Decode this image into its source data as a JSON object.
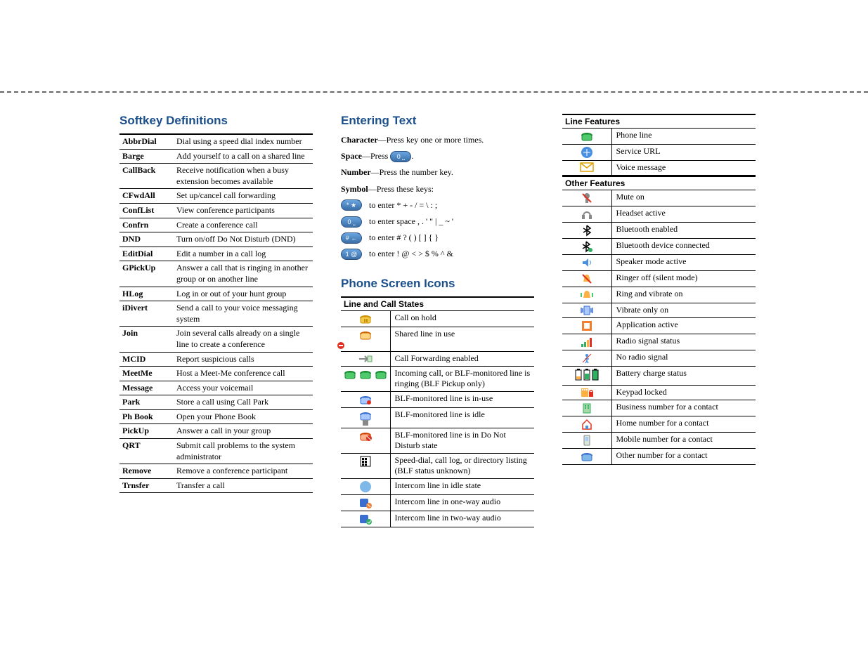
{
  "colors": {
    "heading": "#1b4f8b",
    "text": "#000000",
    "dash": "#666666",
    "keybtn_bg_top": "#6aa5e0",
    "keybtn_bg_bottom": "#3a6fa8"
  },
  "headings": {
    "softkey": "Softkey Definitions",
    "entering": "Entering Text",
    "icons": "Phone Screen Icons",
    "line_states": "Line and Call States",
    "line_features": "Line Features",
    "other_features": "Other Features"
  },
  "softkeys": [
    {
      "key": "AbbrDial",
      "desc": "Dial using a speed dial index number"
    },
    {
      "key": "Barge",
      "desc": "Add yourself to a call on a shared line"
    },
    {
      "key": "CallBack",
      "desc": "Receive notification when a busy extension becomes available"
    },
    {
      "key": "CFwdAll",
      "desc": "Set up/cancel call forwarding"
    },
    {
      "key": "ConfList",
      "desc": "View conference participants"
    },
    {
      "key": "Confrn",
      "desc": "Create a conference call"
    },
    {
      "key": "DND",
      "desc": "Turn on/off Do Not Disturb (DND)"
    },
    {
      "key": "EditDial",
      "desc": "Edit a number in a call log"
    },
    {
      "key": "GPickUp",
      "desc": "Answer a call that is ringing in another group or on another line"
    },
    {
      "key": "HLog",
      "desc": "Log in or out of your hunt group"
    },
    {
      "key": "iDivert",
      "desc": "Send a call to your voice messaging system"
    },
    {
      "key": "Join",
      "desc": "Join several calls already on a single line to create a conference"
    },
    {
      "key": "MCID",
      "desc": "Report suspicious calls"
    },
    {
      "key": "MeetMe",
      "desc": "Host a Meet-Me conference call"
    },
    {
      "key": "Message",
      "desc": "Access your voicemail"
    },
    {
      "key": "Park",
      "desc": "Store a call using Call Park"
    },
    {
      "key": "Ph Book",
      "desc": "Open your Phone Book"
    },
    {
      "key": "PickUp",
      "desc": "Answer a call in your group"
    },
    {
      "key": "QRT",
      "desc": "Submit call problems to the system administrator"
    },
    {
      "key": "Remove",
      "desc": "Remove a conference participant"
    },
    {
      "key": "Trnsfer",
      "desc": "Transfer a call"
    }
  ],
  "entering_text": {
    "character_label": "Character",
    "character_desc": "—Press key one or more times.",
    "space_label": "Space",
    "space_desc_pre": "—Press ",
    "space_desc_post": ".",
    "number_label": "Number",
    "number_desc": "—Press the number key.",
    "symbol_label": "Symbol",
    "symbol_desc": "—Press these keys:",
    "rows": [
      {
        "btn": "* ★",
        "text": "to enter * + - / = \\ : ;"
      },
      {
        "btn": "0 ⎵",
        "text": "to enter space , . ' \" | _ ~ '"
      },
      {
        "btn": "# ←",
        "text": "to enter # ? ( ) [ ] { }"
      },
      {
        "btn": "1 @",
        "text": "to enter ! @ < > $ % ^ &"
      }
    ],
    "space_btn": "0 ⎵"
  },
  "line_states": [
    {
      "icon": "hold",
      "desc": "Call on hold"
    },
    {
      "icon": "shared",
      "desc": "Shared line in use"
    },
    {
      "icon": "cfwd",
      "desc": "Call Forwarding enabled"
    },
    {
      "icon": "incoming3",
      "desc": "Incoming call, or BLF-monitored line is ringing (BLF Pickup only)"
    },
    {
      "icon": "blf-inuse",
      "desc": "BLF-monitored line is in-use"
    },
    {
      "icon": "blf-idle",
      "desc": "BLF-monitored line is idle"
    },
    {
      "icon": "blf-dnd",
      "desc": "BLF-monitored line is in Do Not Disturb state"
    },
    {
      "icon": "directory",
      "desc": "Speed-dial, call log, or directory listing (BLF status unknown)"
    },
    {
      "icon": "intercom-idle",
      "desc": "Intercom line in idle state"
    },
    {
      "icon": "intercom-1way",
      "desc": "Intercom line in one-way audio"
    },
    {
      "icon": "intercom-2way",
      "desc": "Intercom line in two-way audio"
    }
  ],
  "line_features": [
    {
      "icon": "phone-line",
      "desc": "Phone line"
    },
    {
      "icon": "service-url",
      "desc": "Service URL"
    },
    {
      "icon": "voicemail",
      "desc": "Voice message"
    }
  ],
  "other_features": [
    {
      "icon": "mute",
      "desc": "Mute on"
    },
    {
      "icon": "headset",
      "desc": "Headset active"
    },
    {
      "icon": "bluetooth",
      "desc": "Bluetooth enabled"
    },
    {
      "icon": "bt-connected",
      "desc": "Bluetooth device connected"
    },
    {
      "icon": "speaker",
      "desc": "Speaker mode active"
    },
    {
      "icon": "ringer-off",
      "desc": "Ringer off (silent mode)"
    },
    {
      "icon": "ring-vibrate",
      "desc": "Ring and vibrate on"
    },
    {
      "icon": "vibrate",
      "desc": "Vibrate only on"
    },
    {
      "icon": "app-active",
      "desc": "Application active"
    },
    {
      "icon": "signal",
      "desc": "Radio signal status"
    },
    {
      "icon": "no-signal",
      "desc": "No radio signal"
    },
    {
      "icon": "battery",
      "desc": "Battery charge status"
    },
    {
      "icon": "keypad-lock",
      "desc": "Keypad locked"
    },
    {
      "icon": "business",
      "desc": "Business number for a contact"
    },
    {
      "icon": "home",
      "desc": "Home number for a contact"
    },
    {
      "icon": "mobile",
      "desc": "Mobile number for a contact"
    },
    {
      "icon": "other-num",
      "desc": "Other number for a contact"
    }
  ]
}
